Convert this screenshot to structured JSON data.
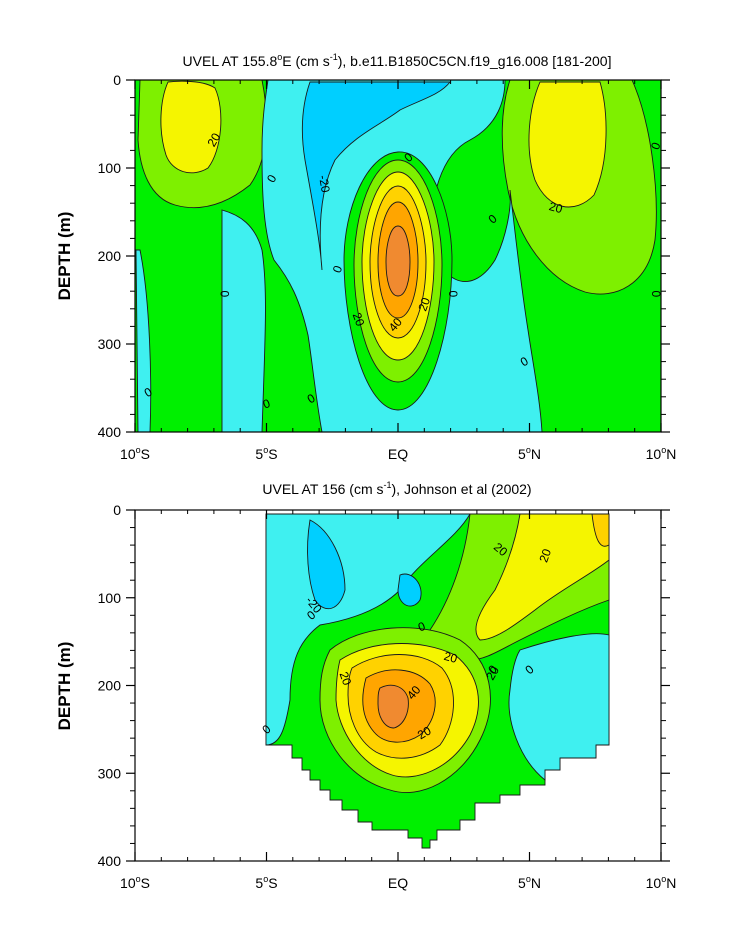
{
  "figure": {
    "description_colors": {
      "below_m20": "#00cfff",
      "m20_to_0": "#3ff0f0",
      "0_to_10": "#00f000",
      "10_to_20": "#7ef000",
      "20_to_30": "#f5f500",
      "30_to_40": "#ffd200",
      "40_to_50": "#ffa500",
      "above_50": "#f08a30",
      "contour_line": "#1a1a1a"
    }
  },
  "chart_data": [
    {
      "type": "contour",
      "title_prefix": "UVEL AT 155.8",
      "title_deg": "o",
      "title_mid": "E (cm s",
      "title_exp": "-1",
      "title_suffix": "), b.e11.B1850C5CN.f19_g16.008 [181-200]",
      "xlabel": "",
      "ylabel": "DEPTH (m)",
      "xlim": [
        -10,
        10
      ],
      "ylim": [
        0,
        400
      ],
      "y_inverted": true,
      "x_ticks": [
        {
          "value": -10,
          "label": "10",
          "deg": "o",
          "hemi": "S"
        },
        {
          "value": -5,
          "label": "5",
          "deg": "o",
          "hemi": "S"
        },
        {
          "value": 0,
          "label": "EQ",
          "deg": "",
          "hemi": ""
        },
        {
          "value": 5,
          "label": "5",
          "deg": "o",
          "hemi": "N"
        },
        {
          "value": 10,
          "label": "10",
          "deg": "o",
          "hemi": "N"
        }
      ],
      "y_ticks": [
        {
          "value": 0,
          "label": "0"
        },
        {
          "value": 100,
          "label": "100"
        },
        {
          "value": 200,
          "label": "200"
        },
        {
          "value": 300,
          "label": "300"
        },
        {
          "value": 400,
          "label": "400"
        }
      ],
      "contour_labels": [
        {
          "x": -7.0,
          "y": 68,
          "text": "20",
          "rot": -60
        },
        {
          "x": -4.8,
          "y": 112,
          "text": "0",
          "rot": -60
        },
        {
          "x": -2.8,
          "y": 118,
          "text": "-20",
          "rot": 80
        },
        {
          "x": 0.4,
          "y": 88,
          "text": "0",
          "rot": -40
        },
        {
          "x": 6.0,
          "y": 145,
          "text": "20",
          "rot": 15
        },
        {
          "x": 9.8,
          "y": 75,
          "text": "0",
          "rot": -70
        },
        {
          "x": 3.6,
          "y": 158,
          "text": "0",
          "rot": -40
        },
        {
          "x": -2.3,
          "y": 215,
          "text": "0",
          "rot": -70
        },
        {
          "x": -6.6,
          "y": 243,
          "text": "0",
          "rot": 90
        },
        {
          "x": 2.1,
          "y": 243,
          "text": "0",
          "rot": 90
        },
        {
          "x": 9.8,
          "y": 243,
          "text": "0",
          "rot": 90
        },
        {
          "x": 1.0,
          "y": 255,
          "text": "20",
          "rot": -70
        },
        {
          "x": -1.5,
          "y": 272,
          "text": "20",
          "rot": 70
        },
        {
          "x": -0.1,
          "y": 278,
          "text": "40",
          "rot": -50
        },
        {
          "x": 4.8,
          "y": 320,
          "text": "0",
          "rot": -30
        },
        {
          "x": -9.5,
          "y": 355,
          "text": "0",
          "rot": -30
        },
        {
          "x": -5.0,
          "y": 368,
          "text": "0",
          "rot": -20
        },
        {
          "x": -3.3,
          "y": 362,
          "text": "0",
          "rot": -30
        }
      ]
    },
    {
      "type": "contour",
      "title_prefix": "UVEL AT 156 (cm s",
      "title_exp": "-1",
      "title_suffix": "), Johnson et al (2002)",
      "xlabel": "",
      "ylabel": "DEPTH (m)",
      "xlim": [
        -10,
        10
      ],
      "ylim": [
        0,
        400
      ],
      "y_inverted": true,
      "x_ticks": [
        {
          "value": -10,
          "label": "10",
          "deg": "o",
          "hemi": "S"
        },
        {
          "value": -5,
          "label": "5",
          "deg": "o",
          "hemi": "S"
        },
        {
          "value": 0,
          "label": "EQ",
          "deg": "",
          "hemi": ""
        },
        {
          "value": 5,
          "label": "5",
          "deg": "o",
          "hemi": "N"
        },
        {
          "value": 10,
          "label": "10",
          "deg": "o",
          "hemi": "N"
        }
      ],
      "y_ticks": [
        {
          "value": 0,
          "label": "0"
        },
        {
          "value": 100,
          "label": "100"
        },
        {
          "value": 200,
          "label": "200"
        },
        {
          "value": 300,
          "label": "300"
        },
        {
          "value": 400,
          "label": "400"
        }
      ],
      "contour_labels": [
        {
          "x": 3.9,
          "y": 45,
          "text": "20",
          "rot": 40
        },
        {
          "x": 5.6,
          "y": 52,
          "text": "20",
          "rot": -70
        },
        {
          "x": -3.2,
          "y": 108,
          "text": "-20",
          "rot": 50
        },
        {
          "x": -3.3,
          "y": 120,
          "text": "0",
          "rot": -40
        },
        {
          "x": 0.9,
          "y": 133,
          "text": "0",
          "rot": -20
        },
        {
          "x": 2.0,
          "y": 168,
          "text": "20",
          "rot": 15
        },
        {
          "x": 3.6,
          "y": 182,
          "text": "0",
          "rot": -40
        },
        {
          "x": 3.6,
          "y": 186,
          "text": "20",
          "rot": -60
        },
        {
          "x": 0.6,
          "y": 208,
          "text": "40",
          "rot": -50
        },
        {
          "x": -2.0,
          "y": 192,
          "text": "20",
          "rot": 70
        },
        {
          "x": 1.0,
          "y": 254,
          "text": "20",
          "rot": -30
        },
        {
          "x": 5.0,
          "y": 182,
          "text": "0",
          "rot": -40
        },
        {
          "x": -5.0,
          "y": 250,
          "text": "0",
          "rot": -40
        }
      ]
    }
  ]
}
